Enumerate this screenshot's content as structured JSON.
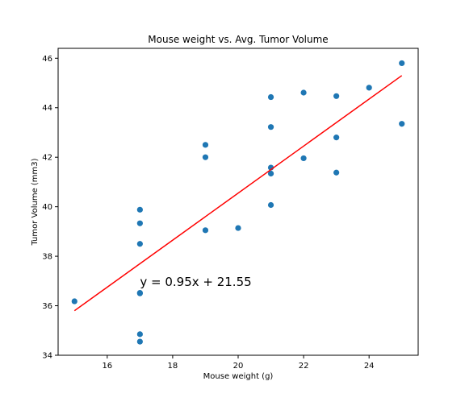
{
  "chart_data": {
    "type": "scatter",
    "title": "Mouse weight vs. Avg. Tumor Volume",
    "xlabel": "Mouse weight (g)",
    "ylabel": "Tumor Volume (mm3)",
    "xlim": [
      14.5,
      25.5
    ],
    "ylim": [
      34,
      46.4
    ],
    "xticks": [
      16,
      18,
      20,
      22,
      24
    ],
    "yticks": [
      34,
      36,
      38,
      40,
      42,
      44,
      46
    ],
    "grid": false,
    "points_color": "#1f77b4",
    "points": [
      [
        15,
        36.18
      ],
      [
        17,
        34.55
      ],
      [
        17,
        34.85
      ],
      [
        17,
        36.5
      ],
      [
        17,
        36.52
      ],
      [
        17,
        38.5
      ],
      [
        17,
        39.33
      ],
      [
        17,
        39.88
      ],
      [
        19,
        39.05
      ],
      [
        19,
        42.0
      ],
      [
        19,
        42.5
      ],
      [
        20,
        39.14
      ],
      [
        21,
        40.07
      ],
      [
        21,
        41.34
      ],
      [
        21,
        41.58
      ],
      [
        21,
        43.22
      ],
      [
        21,
        44.43
      ],
      [
        22,
        41.96
      ],
      [
        22,
        44.61
      ],
      [
        23,
        41.38
      ],
      [
        23,
        42.8
      ],
      [
        23,
        44.47
      ],
      [
        24,
        44.81
      ],
      [
        25,
        43.35
      ],
      [
        25,
        45.8
      ]
    ],
    "regression": {
      "slope": 0.95,
      "intercept": 21.55,
      "x_range": [
        15,
        25
      ],
      "color": "#ff0000",
      "label": "y = 0.95x + 21.55",
      "label_at": [
        17,
        37
      ]
    }
  }
}
